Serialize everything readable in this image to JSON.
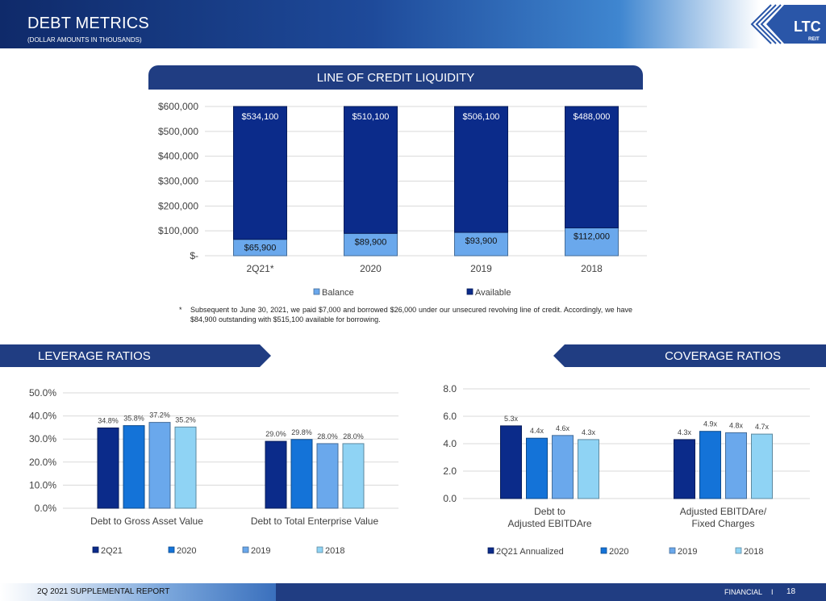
{
  "header": {
    "title": "DEBT METRICS",
    "subtitle": "(DOLLAR AMOUNTS IN THOUSANDS)"
  },
  "logo": {
    "text": "LTC",
    "subtext": "REIT"
  },
  "sections": {
    "credit": "LINE OF CREDIT LIQUIDITY",
    "leverage": "LEVERAGE RATIOS",
    "coverage": "COVERAGE RATIOS"
  },
  "footnote": {
    "star": "*",
    "text": "Subsequent to June 30, 2021, we paid $7,000 and borrowed $26,000 under our unsecured revolving line of credit. Accordingly, we have $84,900 outstanding with $515,100 available for borrowing."
  },
  "footer": {
    "left": "2Q 2021 SUPPLEMENTAL REPORT",
    "right": "FINANCIAL",
    "separator": "I",
    "page": "18"
  },
  "colors": {
    "navy": "#203d82",
    "dark_blue": "#0b2b8a",
    "mid_blue": "#1473d8",
    "light_blue": "#6aa8ec",
    "pale_blue": "#8fd3f4"
  },
  "chart_data": [
    {
      "type": "bar",
      "stacked": true,
      "categories": [
        "2Q21*",
        "2020",
        "2019",
        "2018"
      ],
      "series": [
        {
          "name": "Balance",
          "values": [
            65900,
            89900,
            93900,
            112000
          ],
          "labels": [
            "$65,900",
            "$89,900",
            "$93,900",
            "$112,000"
          ],
          "color": "#6aa8ec"
        },
        {
          "name": "Available",
          "values": [
            534100,
            510100,
            506100,
            488000
          ],
          "labels": [
            "$534,100",
            "$510,100",
            "$506,100",
            "$488,000"
          ],
          "color": "#0b2b8a"
        }
      ],
      "ylim": [
        0,
        600000
      ],
      "yticks": [
        0,
        100000,
        200000,
        300000,
        400000,
        500000,
        600000
      ],
      "ytick_labels": [
        "$-",
        "$100,000",
        "$200,000",
        "$300,000",
        "$400,000",
        "$500,000",
        "$600,000"
      ],
      "legend_position": "bottom",
      "grid": true
    },
    {
      "type": "bar",
      "categories": [
        "Debt to Gross Asset Value",
        "Debt to Total Enterprise Value"
      ],
      "series": [
        {
          "name": "2Q21",
          "values": [
            34.8,
            29.0
          ],
          "labels": [
            "34.8%",
            "29.0%"
          ],
          "color": "#0b2b8a"
        },
        {
          "name": "2020",
          "values": [
            35.8,
            29.8
          ],
          "labels": [
            "35.8%",
            "29.8%"
          ],
          "color": "#1473d8"
        },
        {
          "name": "2019",
          "values": [
            37.2,
            28.0
          ],
          "labels": [
            "37.2%",
            "28.0%"
          ],
          "color": "#6aa8ec"
        },
        {
          "name": "2018",
          "values": [
            35.2,
            28.0
          ],
          "labels": [
            "35.2%",
            "28.0%"
          ],
          "color": "#8fd3f4"
        }
      ],
      "ylim": [
        0,
        50
      ],
      "yticks": [
        0,
        10,
        20,
        30,
        40,
        50
      ],
      "ytick_labels": [
        "0.0%",
        "10.0%",
        "20.0%",
        "30.0%",
        "40.0%",
        "50.0%"
      ],
      "legend_position": "bottom",
      "grid": true
    },
    {
      "type": "bar",
      "categories": [
        "Debt to\nAdjusted EBITDAre",
        "Adjusted EBITDAre/\nFixed Charges"
      ],
      "series": [
        {
          "name": "2Q21 Annualized",
          "values": [
            5.3,
            4.3
          ],
          "labels": [
            "5.3x",
            "4.3x"
          ],
          "color": "#0b2b8a"
        },
        {
          "name": "2020",
          "values": [
            4.4,
            4.9
          ],
          "labels": [
            "4.4x",
            "4.9x"
          ],
          "color": "#1473d8"
        },
        {
          "name": "2019",
          "values": [
            4.6,
            4.8
          ],
          "labels": [
            "4.6x",
            "4.8x"
          ],
          "color": "#6aa8ec"
        },
        {
          "name": "2018",
          "values": [
            4.3,
            4.7
          ],
          "labels": [
            "4.3x",
            "4.7x"
          ],
          "color": "#8fd3f4"
        }
      ],
      "ylim": [
        0,
        8
      ],
      "yticks": [
        0,
        2,
        4,
        6,
        8
      ],
      "ytick_labels": [
        "0.0",
        "2.0",
        "4.0",
        "6.0",
        "8.0"
      ],
      "legend_position": "bottom",
      "grid": true
    }
  ]
}
